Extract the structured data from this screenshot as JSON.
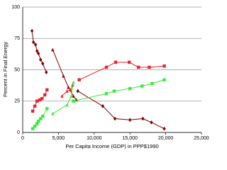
{
  "chart_data": {
    "type": "line",
    "xlabel": "Per Capita Income (GDP) in PPP$1990",
    "ylabel": "Percent in Final Energy",
    "xlim": [
      0,
      25000
    ],
    "xticks": [
      0,
      {
        "value": 5000,
        "label": "5,000"
      },
      {
        "value": 10000,
        "label": "10,000"
      },
      {
        "value": 15000,
        "label": "15,000"
      },
      {
        "value": 20000,
        "label": "20,000"
      },
      {
        "value": 25000,
        "label": "25,000"
      }
    ],
    "ylim": [
      0,
      100
    ],
    "yticks": [
      0,
      25,
      50,
      75,
      100
    ],
    "grid": true,
    "series": [
      {
        "color": "#800000",
        "marker": "diamond",
        "x": [
          1300,
          1500,
          1800,
          2000,
          2200,
          2500,
          2800,
          3300
        ],
        "values": [
          81,
          72,
          70,
          65,
          63,
          58,
          55,
          48
        ]
      },
      {
        "color": "#e8242a",
        "marker": "square",
        "x": [
          1400,
          1700,
          2000,
          2400,
          2700,
          3100,
          3400
        ],
        "values": [
          17,
          21,
          25,
          26,
          27,
          30,
          34
        ]
      },
      {
        "color": "#33ee33",
        "marker": "square",
        "x": [
          1400,
          1700,
          2000,
          2200,
          2500,
          2800,
          3400
        ],
        "values": [
          3,
          5,
          7,
          9,
          11,
          13,
          19
        ]
      },
      {
        "color": "#800000",
        "marker": "triangle",
        "x": [
          4200,
          5700,
          6400,
          7100,
          7500
        ],
        "values": [
          66,
          45,
          36,
          29,
          26
        ]
      },
      {
        "color": "#e8242a",
        "marker": "triangle",
        "x": [
          5500,
          6200,
          6700,
          7000
        ],
        "values": [
          29,
          33,
          34,
          38
        ]
      },
      {
        "color": "#33ee33",
        "marker": "triangle",
        "x": [
          4200,
          6200,
          6800,
          7100
        ],
        "values": [
          15,
          22,
          29,
          40
        ]
      },
      {
        "color": "#800000",
        "marker": "diamond",
        "x": [
          7700,
          11200,
          12900,
          15000,
          16800,
          18000,
          19800
        ],
        "values": [
          33,
          21,
          11,
          10,
          11,
          8,
          3
        ]
      },
      {
        "color": "#e8242a",
        "marker": "square",
        "x": [
          7900,
          11700,
          13000,
          14900,
          16200,
          17700,
          19800
        ],
        "values": [
          42,
          52,
          56,
          56,
          52,
          52,
          53
        ]
      },
      {
        "color": "#33ee33",
        "marker": "square",
        "x": [
          7100,
          11700,
          12800,
          15000,
          16700,
          18100,
          19800
        ],
        "values": [
          25,
          31,
          33,
          35,
          37,
          39,
          42
        ]
      }
    ]
  }
}
